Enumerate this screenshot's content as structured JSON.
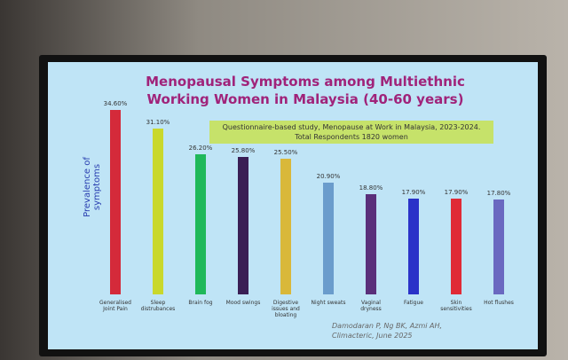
{
  "chart_data": {
    "type": "bar",
    "title": "Menopausal Symptoms among Multiethnic Working Women in Malaysia (40-60 years)",
    "subtitle_lines": [
      "Questionnaire-based study, Menopause at Work in Malaysia, 2023-2024.",
      "Total Respondents 1820 women"
    ],
    "y_label": "Prevalence of symptoms",
    "categories": [
      "Generalised Joint Pain",
      "Sleep distrubances",
      "Brain fog",
      "Mood swings",
      "Digestive issues and bloating",
      "Night sweats",
      "Vaginal dryness",
      "Fatigue",
      "Skin sensitivities",
      "Hot flushes"
    ],
    "values": [
      34.6,
      31.1,
      26.2,
      25.8,
      25.5,
      20.9,
      18.8,
      17.9,
      17.9,
      17.8
    ],
    "value_labels": [
      "34.60%",
      "31.10%",
      "26.20%",
      "25.80%",
      "25.50%",
      "20.90%",
      "18.80%",
      "17.90%",
      "17.90%",
      "17.80%"
    ],
    "colors": [
      "#d42a3a",
      "#c9d82c",
      "#1fb85a",
      "#3a1f55",
      "#d9b83a",
      "#6a9ccc",
      "#5a2f7a",
      "#2a32c8",
      "#e02a36",
      "#6a68c0"
    ],
    "source_lines": [
      "Damodaran P, Ng BK, Azmi AH,",
      "Climacteric, June 2025"
    ]
  }
}
